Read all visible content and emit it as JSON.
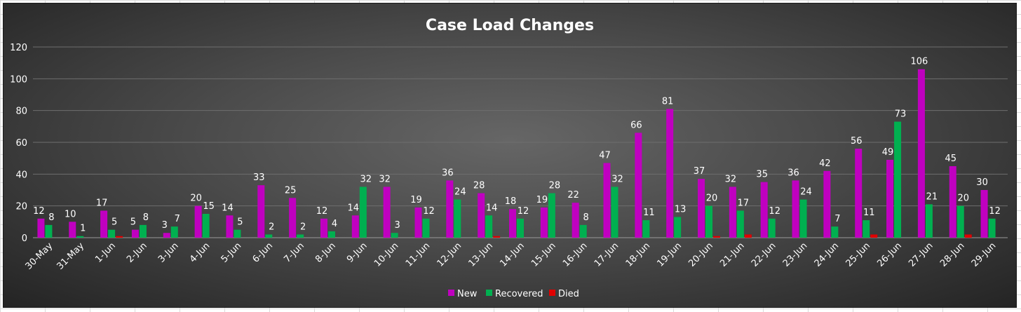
{
  "chart_data": {
    "type": "bar",
    "title": "Case Load Changes",
    "xlabel": "",
    "ylabel": "",
    "ylim": [
      0,
      120
    ],
    "yticks": [
      0,
      20,
      40,
      60,
      80,
      100,
      120
    ],
    "grid": true,
    "legend_position": "bottom",
    "categories": [
      "30-May",
      "31-May",
      "1-Jun",
      "2-Jun",
      "3-Jun",
      "4-Jun",
      "5-Jun",
      "6-Jun",
      "7-Jun",
      "8-Jun",
      "9-Jun",
      "10-Jun",
      "11-Jun",
      "12-Jun",
      "13-Jun",
      "14-Jun",
      "15-Jun",
      "16-Jun",
      "17-Jun",
      "18-Jun",
      "19-Jun",
      "20-Jun",
      "21-Jun",
      "22-Jun",
      "23-Jun",
      "24-Jun",
      "25-Jun",
      "26-Jun",
      "27-Jun",
      "28-Jun",
      "29-Jun"
    ],
    "series": [
      {
        "name": "New",
        "color": "#c000c0",
        "show_labels": true,
        "values": [
          12,
          10,
          17,
          5,
          3,
          20,
          14,
          33,
          25,
          12,
          14,
          32,
          19,
          36,
          28,
          18,
          19,
          22,
          47,
          66,
          81,
          37,
          32,
          35,
          36,
          42,
          56,
          49,
          106,
          45,
          30
        ]
      },
      {
        "name": "Recovered",
        "color": "#00b050",
        "show_labels": true,
        "values": [
          8,
          1,
          5,
          8,
          7,
          15,
          5,
          2,
          2,
          4,
          32,
          3,
          12,
          24,
          14,
          12,
          28,
          8,
          32,
          11,
          13,
          20,
          17,
          12,
          24,
          7,
          11,
          73,
          21,
          20,
          12
        ]
      },
      {
        "name": "Died",
        "color": "#e00000",
        "show_labels": false,
        "values": [
          0,
          0,
          1,
          0,
          0,
          0,
          0,
          0,
          0,
          0,
          0,
          0,
          0,
          0,
          1,
          0,
          0,
          0,
          0,
          0,
          0,
          1,
          2,
          0,
          0,
          0,
          2,
          0,
          0,
          2,
          0
        ]
      }
    ]
  }
}
